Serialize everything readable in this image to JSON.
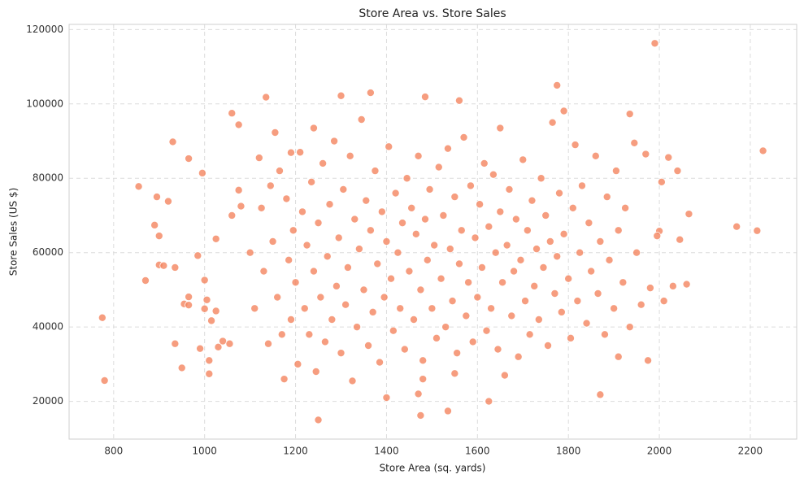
{
  "chart_data": {
    "type": "scatter",
    "title": "Store Area vs. Store Sales",
    "x_label": "Store Area (sq. yards)",
    "y_label": "Store Sales (US $)",
    "color": "#f4845f",
    "grid": true,
    "xlim": [
      702,
      2302
    ],
    "ylim": [
      9850,
      121390
    ],
    "xticks": [
      800,
      1000,
      1200,
      1400,
      1600,
      1800,
      2000,
      2200
    ],
    "yticks": [
      20000,
      40000,
      60000,
      80000,
      100000,
      120000
    ],
    "x": [
      775,
      780,
      855,
      870,
      890,
      895,
      900,
      900,
      910,
      920,
      930,
      935,
      935,
      950,
      955,
      965,
      965,
      965,
      985,
      990,
      995,
      1000,
      1000,
      1005,
      1010,
      1010,
      1015,
      1025,
      1025,
      1030,
      1040,
      1055,
      1060,
      1060,
      1075,
      1075,
      1080,
      1135,
      1190,
      1240,
      1250,
      1300,
      1365,
      1470,
      1475,
      1480,
      1485,
      1535,
      1550,
      1560,
      1625,
      1650,
      1775,
      1790,
      1870,
      1910,
      1935,
      1975,
      1990,
      2000,
      2020,
      2040,
      2045,
      2060,
      2065,
      2170,
      2215,
      2228,
      1100,
      1110,
      1120,
      1125,
      1130,
      1140,
      1145,
      1150,
      1155,
      1160,
      1165,
      1170,
      1175,
      1180,
      1185,
      1190,
      1195,
      1200,
      1205,
      1210,
      1215,
      1220,
      1225,
      1230,
      1235,
      1240,
      1245,
      1250,
      1255,
      1260,
      1265,
      1270,
      1275,
      1280,
      1285,
      1290,
      1295,
      1300,
      1305,
      1310,
      1315,
      1320,
      1325,
      1330,
      1335,
      1340,
      1345,
      1350,
      1355,
      1360,
      1365,
      1370,
      1375,
      1380,
      1385,
      1390,
      1395,
      1400,
      1400,
      1405,
      1410,
      1415,
      1420,
      1425,
      1430,
      1435,
      1440,
      1445,
      1450,
      1455,
      1460,
      1465,
      1470,
      1475,
      1480,
      1485,
      1490,
      1495,
      1500,
      1505,
      1510,
      1515,
      1520,
      1525,
      1530,
      1535,
      1540,
      1545,
      1550,
      1555,
      1560,
      1565,
      1570,
      1575,
      1580,
      1585,
      1590,
      1595,
      1600,
      1605,
      1610,
      1615,
      1620,
      1625,
      1630,
      1635,
      1640,
      1645,
      1650,
      1655,
      1660,
      1665,
      1670,
      1675,
      1680,
      1685,
      1690,
      1695,
      1700,
      1705,
      1710,
      1715,
      1720,
      1725,
      1730,
      1735,
      1740,
      1745,
      1750,
      1755,
      1760,
      1765,
      1770,
      1775,
      1780,
      1785,
      1790,
      1800,
      1805,
      1810,
      1815,
      1820,
      1825,
      1830,
      1840,
      1845,
      1850,
      1860,
      1865,
      1870,
      1880,
      1885,
      1890,
      1900,
      1905,
      1910,
      1920,
      1925,
      1935,
      1945,
      1950,
      1960,
      1970,
      1980,
      1995,
      2005,
      2010,
      2030
    ],
    "values": [
      42500,
      25600,
      77800,
      52500,
      67400,
      75000,
      64500,
      56700,
      56500,
      73800,
      89800,
      56000,
      35500,
      29000,
      46200,
      85300,
      45900,
      48100,
      59200,
      34200,
      81400,
      44900,
      52600,
      47300,
      27400,
      31000,
      41700,
      63700,
      44300,
      34600,
      36200,
      35500,
      97500,
      70000,
      94400,
      76800,
      72500,
      101800,
      86900,
      93500,
      15000,
      102200,
      103000,
      22000,
      16200,
      26000,
      101900,
      17400,
      27500,
      100900,
      20000,
      93500,
      105000,
      98100,
      21800,
      32000,
      97300,
      31000,
      116300,
      65800,
      85600,
      82000,
      63500,
      51500,
      70400,
      67000,
      65900,
      87400,
      60000,
      45000,
      85500,
      72000,
      55000,
      35500,
      78000,
      63000,
      92300,
      48000,
      82000,
      38000,
      26000,
      74500,
      58000,
      42000,
      66000,
      52000,
      30000,
      87000,
      71000,
      45000,
      62000,
      38000,
      79000,
      55000,
      28000,
      68000,
      48000,
      84000,
      36000,
      59000,
      73000,
      42000,
      90000,
      51000,
      64000,
      33000,
      77000,
      46000,
      56000,
      86000,
      25500,
      69000,
      40000,
      61000,
      95800,
      50000,
      74000,
      35000,
      66000,
      44000,
      82000,
      57000,
      30500,
      71000,
      48000,
      63000,
      21000,
      88500,
      53000,
      39000,
      76000,
      60000,
      45000,
      68000,
      34000,
      80000,
      55000,
      72000,
      42000,
      65000,
      86000,
      50000,
      31000,
      69000,
      58000,
      77000,
      45000,
      62000,
      37000,
      83000,
      53000,
      70000,
      40000,
      88000,
      61000,
      47000,
      75000,
      33000,
      57000,
      66000,
      91000,
      43000,
      52000,
      78000,
      36000,
      64000,
      48000,
      73000,
      56000,
      84000,
      39000,
      67000,
      45000,
      81000,
      60000,
      34000,
      71000,
      52000,
      27000,
      62000,
      77000,
      43000,
      55000,
      69000,
      32000,
      58000,
      85000,
      47000,
      66000,
      38000,
      74000,
      51000,
      61000,
      42000,
      80000,
      56000,
      70000,
      35000,
      63000,
      95000,
      49000,
      59000,
      76000,
      44000,
      65000,
      53000,
      37000,
      72000,
      89000,
      47000,
      60000,
      78000,
      41000,
      68000,
      55000,
      86000,
      49000,
      63000,
      38000,
      75000,
      58000,
      45000,
      82000,
      66000,
      52000,
      72000,
      40000,
      89500,
      60000,
      46000,
      86500,
      50500,
      64500,
      79000,
      47000,
      51000
    ]
  }
}
